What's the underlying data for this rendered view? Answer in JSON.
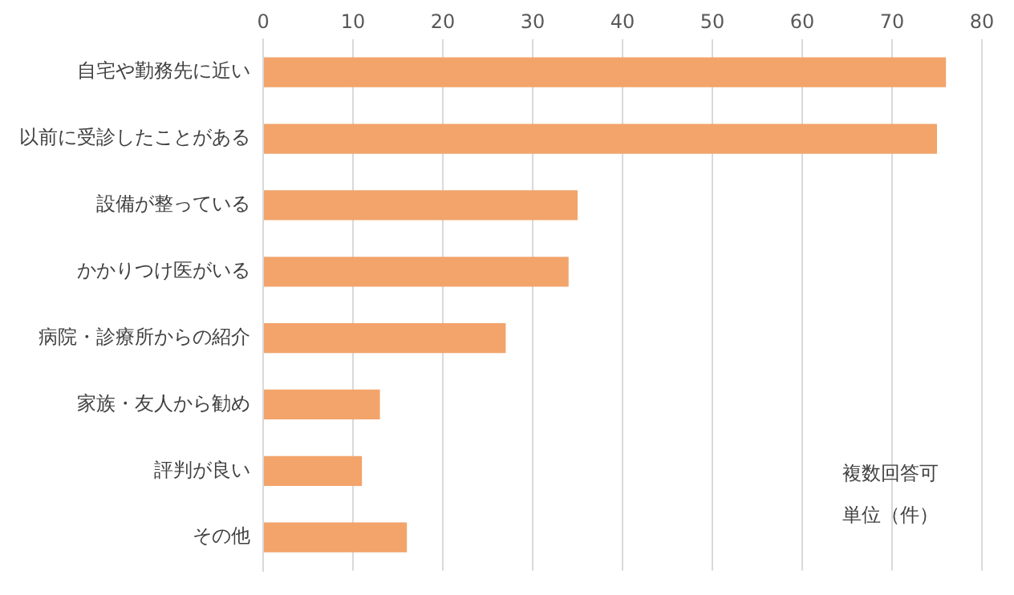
{
  "chart_data": {
    "type": "bar",
    "orientation": "horizontal",
    "categories": [
      "自宅や勤務先に近い",
      "以前に受診したことがある",
      "設備が整っている",
      "かかりつけ医がいる",
      "病院・診療所からの紹介",
      "家族・友人から勧め",
      "評判が良い",
      "その他"
    ],
    "values": [
      76,
      75,
      35,
      34,
      27,
      13,
      11,
      16
    ],
    "color": "#f2a46b",
    "xlim": [
      0,
      80
    ],
    "xticks": [
      0,
      10,
      20,
      30,
      40,
      50,
      60,
      70,
      80
    ],
    "grid": "x",
    "annotations": [
      "複数回答可",
      "単位（件）"
    ]
  }
}
